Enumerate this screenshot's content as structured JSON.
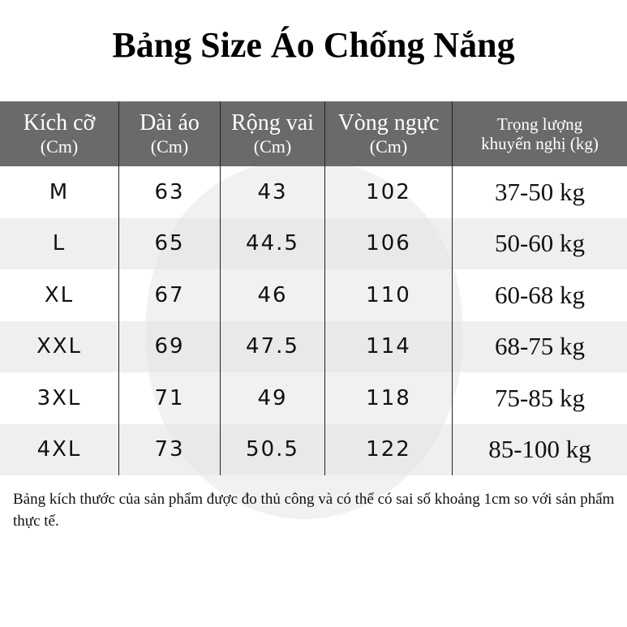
{
  "title": "Bảng Size Áo Chống Nắng",
  "table": {
    "headers": [
      {
        "main": "Kích cỡ",
        "sub": "(Cm)"
      },
      {
        "main": "Dài áo",
        "sub": "(Cm)"
      },
      {
        "main": "Rộng vai",
        "sub": "(Cm)"
      },
      {
        "main": "Vòng ngực",
        "sub": "(Cm)"
      },
      {
        "main": "Trọng lượng",
        "sub": "khuyến nghị (kg)"
      }
    ],
    "rows": [
      [
        "M",
        "63",
        "43",
        "102",
        "37-50 kg"
      ],
      [
        "L",
        "65",
        "44.5",
        "106",
        "50-60 kg"
      ],
      [
        "XL",
        "67",
        "46",
        "110",
        "60-68 kg"
      ],
      [
        "XXL",
        "69",
        "47.5",
        "114",
        "68-75 kg"
      ],
      [
        "3XL",
        "71",
        "49",
        "118",
        "75-85 kg"
      ],
      [
        "4XL",
        "73",
        "50.5",
        "122",
        "85-100 kg"
      ]
    ]
  },
  "note": "Bảng kích thước của sản phẩm được đo thủ công và có thể có sai số khoảng 1cm so với sản phẩm thực tế."
}
